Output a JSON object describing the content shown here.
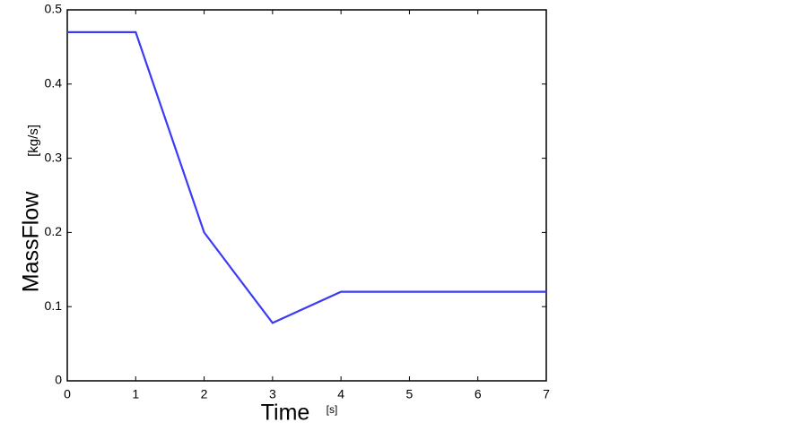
{
  "chart_data": {
    "type": "line",
    "x": [
      0,
      1,
      2,
      3,
      4,
      7
    ],
    "series": [
      {
        "name": "MassFlow",
        "color": "#3b3bf5",
        "values": [
          0.47,
          0.47,
          0.2,
          0.078,
          0.12,
          0.12
        ]
      }
    ],
    "xlabel": "Time",
    "xunit": "[s]",
    "ylabel": "MassFlow",
    "yunit": "[kg/s]",
    "xlim": [
      0,
      7
    ],
    "xticks": [
      0,
      1,
      2,
      3,
      4,
      5,
      6,
      7
    ],
    "ylim": [
      0,
      0.5
    ],
    "yticks": [
      0,
      0.1,
      0.2,
      0.3,
      0.4,
      0.5
    ],
    "grid": false
  }
}
